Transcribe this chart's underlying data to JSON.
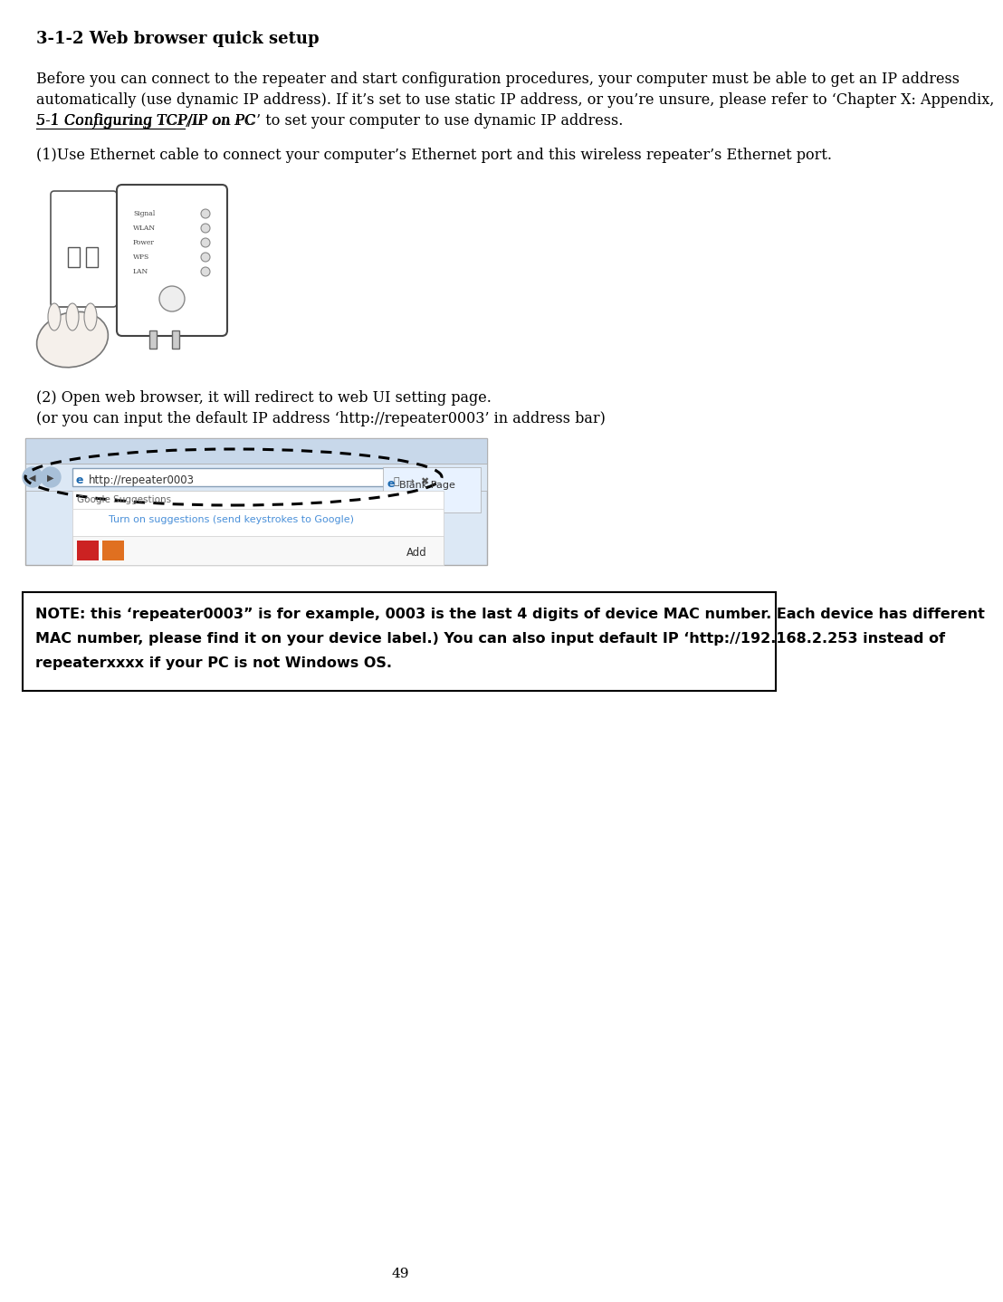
{
  "title": "3-1-2 Web browser quick setup",
  "para1_normal1": "Before you can connect to the repeater and start configuration procedures, your computer must be able to get an IP address automatically (use dynamic IP address). If it’s set to use static IP address, or you’re unsure, please refer to ‘",
  "para1_italic": "Chapter X: Appendix, 5-1 Configuring TCP/IP on PC",
  "para1_normal2": "’ to set your computer to use dynamic IP address.",
  "step1": "(1)Use Ethernet cable to connect your computer’s Ethernet port and this wireless repeater’s Ethernet port.",
  "step2_line1": "(2) Open web browser, it will redirect to web UI setting page.",
  "step2_line2": "(or you can input the default IP address ‘http://repeater0003’ in address bar)",
  "note": "NOTE: this ‘repeater0003” is for example, 0003 is the last 4 digits of device MAC number. Each device has different MAC number, please find it on your device label.) You can also input default IP ‘http://192.168.2.253 instead of repeaterxxxx if your PC is not Windows OS.",
  "page_number": "49",
  "bg_color": "#ffffff",
  "text_color": "#000000",
  "title_fontsize": 13,
  "body_fontsize": 11.5,
  "note_fontsize": 11.5
}
